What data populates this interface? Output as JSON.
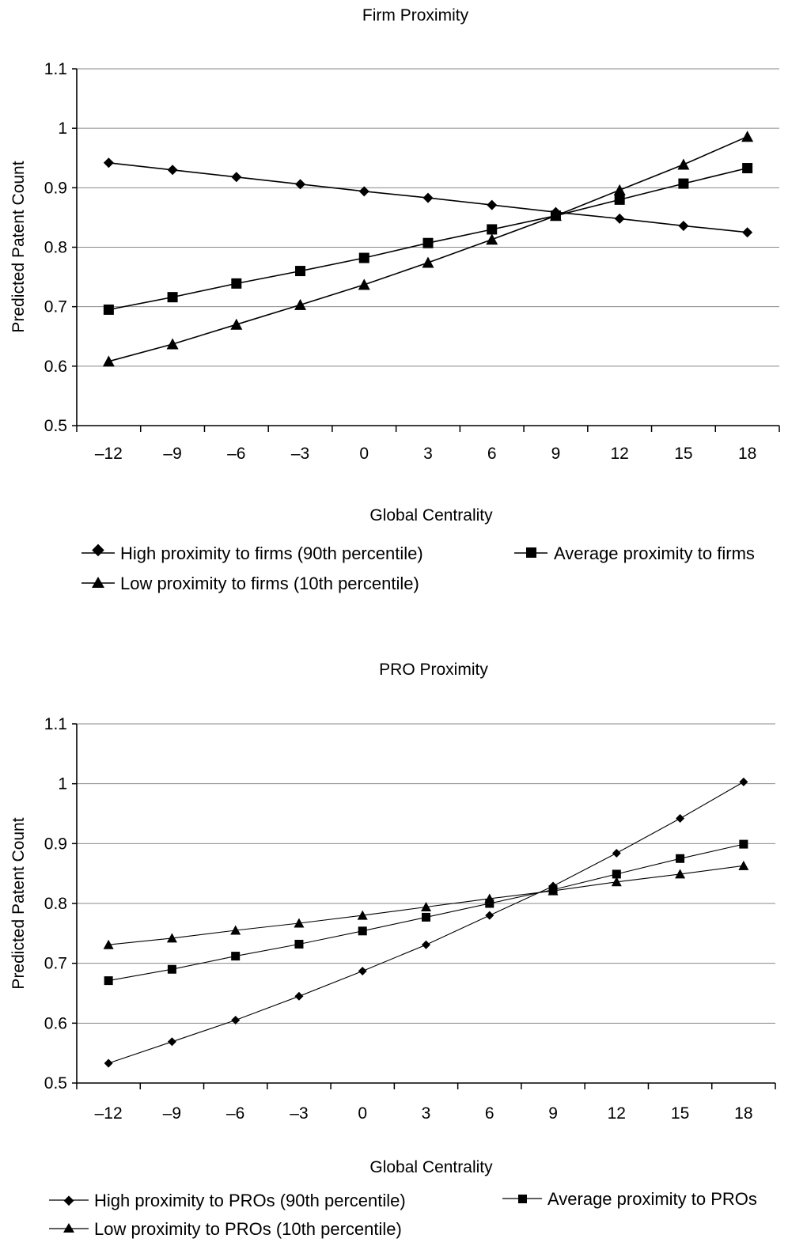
{
  "chart_data": [
    {
      "type": "line",
      "title": "Firm Proximity",
      "xlabel": "Global Centrality",
      "ylabel": "Predicted Patent Count",
      "x_ticks": [
        "–12",
        "–9",
        "–6",
        "–3",
        "0",
        "3",
        "6",
        "9",
        "12",
        "15",
        "18"
      ],
      "y_ticks": [
        "0.5",
        "0.6",
        "0.7",
        "0.8",
        "0.9",
        "1",
        "1.1"
      ],
      "xlim": [
        -13.5,
        19.5
      ],
      "ylim": [
        0.5,
        1.1
      ],
      "grid": "horizontal",
      "legend_position": "bottom",
      "series": [
        {
          "name": "High proximity to firms (90th percentile)",
          "marker": "diamond",
          "x": [
            -12,
            -9,
            -6,
            -3,
            0,
            3,
            6,
            9,
            12,
            15,
            18
          ],
          "values": [
            0.942,
            0.93,
            0.918,
            0.906,
            0.894,
            0.883,
            0.871,
            0.859,
            0.848,
            0.836,
            0.825
          ]
        },
        {
          "name": "Average proximity to firms",
          "marker": "square",
          "x": [
            -12,
            -9,
            -6,
            -3,
            0,
            3,
            6,
            9,
            12,
            15,
            18
          ],
          "values": [
            0.695,
            0.716,
            0.739,
            0.76,
            0.782,
            0.807,
            0.83,
            0.853,
            0.88,
            0.907,
            0.933
          ]
        },
        {
          "name": "Low proximity to firms (10th percentile)",
          "marker": "triangle",
          "x": [
            -12,
            -9,
            -6,
            -3,
            0,
            3,
            6,
            9,
            12,
            15,
            18
          ],
          "values": [
            0.608,
            0.637,
            0.67,
            0.703,
            0.737,
            0.774,
            0.813,
            0.853,
            0.896,
            0.939,
            0.986
          ]
        }
      ]
    },
    {
      "type": "line",
      "title": "PRO Proximity",
      "xlabel": "Global Centrality",
      "ylabel": "Predicted Patent Count",
      "x_ticks": [
        "–12",
        "–9",
        "–6",
        "–3",
        "0",
        "3",
        "6",
        "9",
        "12",
        "15",
        "18"
      ],
      "y_ticks": [
        "0.5",
        "0.6",
        "0.7",
        "0.8",
        "0.9",
        "1",
        "1.1"
      ],
      "xlim": [
        -13.5,
        19.5
      ],
      "ylim": [
        0.5,
        1.1
      ],
      "grid": "horizontal",
      "legend_position": "bottom",
      "series": [
        {
          "name": "High proximity to PROs (90th percentile)",
          "marker": "diamond",
          "x": [
            -12,
            -9,
            -6,
            -3,
            0,
            3,
            6,
            9,
            12,
            15,
            18
          ],
          "values": [
            0.533,
            0.569,
            0.605,
            0.645,
            0.687,
            0.731,
            0.78,
            0.829,
            0.884,
            0.942,
            1.003
          ]
        },
        {
          "name": "Average proximity to PROs",
          "marker": "square",
          "x": [
            -12,
            -9,
            -6,
            -3,
            0,
            3,
            6,
            9,
            12,
            15,
            18
          ],
          "values": [
            0.671,
            0.69,
            0.712,
            0.732,
            0.754,
            0.777,
            0.8,
            0.823,
            0.849,
            0.875,
            0.899
          ]
        },
        {
          "name": "Low proximity to PROs (10th percentile)",
          "marker": "triangle",
          "x": [
            -12,
            -9,
            -6,
            -3,
            0,
            3,
            6,
            9,
            12,
            15,
            18
          ],
          "values": [
            0.731,
            0.742,
            0.755,
            0.767,
            0.78,
            0.794,
            0.808,
            0.821,
            0.836,
            0.849,
            0.863
          ]
        }
      ]
    }
  ]
}
